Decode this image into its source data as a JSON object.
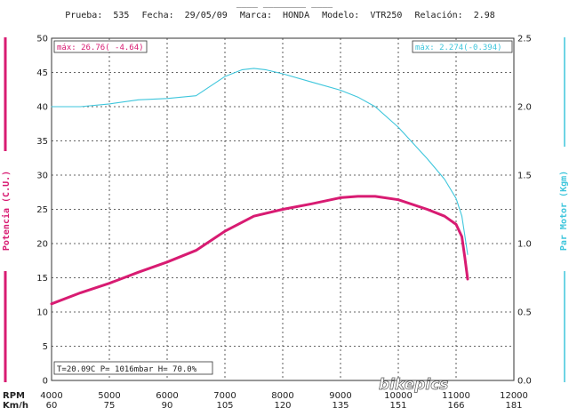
{
  "header": {
    "top_fragment": "____ ________ ____",
    "fields": [
      {
        "label": "Prueba:",
        "value": "535"
      },
      {
        "label": "Fecha:",
        "value": "29/05/09"
      },
      {
        "label": "Marca:",
        "value": "HONDA"
      },
      {
        "label": "Modelo:",
        "value": "VTR250"
      },
      {
        "label": "Relación:",
        "value": "2.98"
      }
    ]
  },
  "annotations": {
    "max_power": "máx: 26.76( -4.64)",
    "max_torque": "máx: 2.274(-0.394)",
    "conditions": "T=20.09C P= 1016mbar H= 70.0%"
  },
  "watermark": "bikepics",
  "colors": {
    "power": "#d81b72",
    "torque": "#3ec6dc",
    "grid": "#333333",
    "text": "#222222"
  },
  "chart_data": {
    "type": "line",
    "xlabel": "RPM",
    "x2label": "Km/h",
    "ylabel": "Potencia (C.U.)",
    "y2label": "Par Motor (Kgm)",
    "xlim": [
      4000,
      12000
    ],
    "ylim": [
      0,
      50
    ],
    "y2lim": [
      0,
      2.5
    ],
    "x_ticks": [
      4000,
      5000,
      6000,
      7000,
      8000,
      9000,
      10000,
      11000,
      12000
    ],
    "x_tick_labels": [
      "4000",
      "5000",
      "6000",
      "7000",
      "8000",
      "9000",
      "10000",
      "11000",
      "12000"
    ],
    "speed_tick_labels": [
      "60",
      "75",
      "90",
      "105",
      "120",
      "135",
      "151",
      "166",
      "181"
    ],
    "y_ticks": [
      0,
      5,
      10,
      15,
      20,
      25,
      30,
      35,
      40,
      45,
      50
    ],
    "y_tick_labels": [
      "0",
      "5",
      "10",
      "15",
      "20",
      "25",
      "30",
      "35",
      "40",
      "45",
      "50"
    ],
    "y2_ticks": [
      0,
      0.5,
      1.0,
      1.5,
      2.0,
      2.5
    ],
    "y2_tick_labels": [
      "0.0",
      "0.5",
      "1.0",
      "1.5",
      "2.0",
      "2.5"
    ],
    "grid": true,
    "series": [
      {
        "name": "Potencia",
        "axis": "left",
        "x": [
          4000,
          4500,
          5000,
          5500,
          6000,
          6500,
          7000,
          7500,
          8000,
          8500,
          9000,
          9300,
          9600,
          10000,
          10500,
          10800,
          11000,
          11100,
          11150,
          11200
        ],
        "y": [
          11.2,
          12.8,
          14.2,
          15.8,
          17.3,
          19.0,
          21.8,
          24.0,
          25.0,
          25.8,
          26.7,
          26.9,
          26.9,
          26.4,
          25.0,
          24.0,
          22.8,
          21.0,
          18.0,
          14.8
        ]
      },
      {
        "name": "Par Motor",
        "axis": "right",
        "x": [
          4000,
          4500,
          5000,
          5500,
          6000,
          6500,
          7000,
          7300,
          7500,
          7700,
          8000,
          8500,
          9000,
          9300,
          9600,
          10000,
          10500,
          10800,
          11000,
          11100,
          11150,
          11200
        ],
        "y": [
          2.0,
          2.0,
          2.02,
          2.05,
          2.06,
          2.08,
          2.22,
          2.27,
          2.28,
          2.27,
          2.24,
          2.18,
          2.12,
          2.07,
          2.0,
          1.85,
          1.62,
          1.47,
          1.33,
          1.2,
          1.06,
          0.92
        ]
      }
    ]
  }
}
